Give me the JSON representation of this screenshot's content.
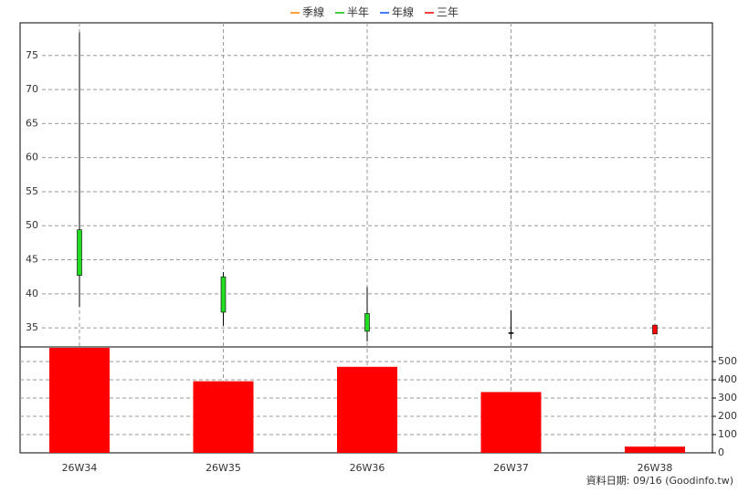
{
  "chart_data": {
    "type": "candlestick",
    "legend": [
      {
        "name": "季線",
        "color": "#ff8000"
      },
      {
        "name": "半年",
        "color": "#00c000"
      },
      {
        "name": "年線",
        "color": "#0050ff"
      },
      {
        "name": "三年",
        "color": "#ff0000"
      }
    ],
    "categories": [
      "26W34",
      "26W35",
      "26W36",
      "26W37",
      "26W38"
    ],
    "open": [
      49.4,
      42.5,
      37.1,
      34.3,
      34.1
    ],
    "high": [
      78.4,
      43.2,
      41.0,
      37.6,
      35.4
    ],
    "low": [
      38.1,
      35.3,
      33.0,
      33.4,
      34.1
    ],
    "close": [
      42.7,
      37.3,
      34.5,
      34.3,
      35.4
    ],
    "up_color": "#ff0000",
    "down_color": "#22dd22",
    "flat_color": "#000000",
    "ylim": [
      32.2,
      79.8
    ],
    "yticks": [
      35,
      40,
      45,
      50,
      55,
      60,
      65,
      70,
      75
    ],
    "volume": {
      "values": [
        575,
        392,
        471,
        333,
        34
      ],
      "color": "#ff0000",
      "axis": "y2"
    },
    "y2lim": [
      0,
      580
    ],
    "y2ticks": [
      0,
      100,
      200,
      300,
      400,
      500
    ],
    "grid": true,
    "footnote": "資料日期: 09/16  (Goodinfo.tw)"
  }
}
